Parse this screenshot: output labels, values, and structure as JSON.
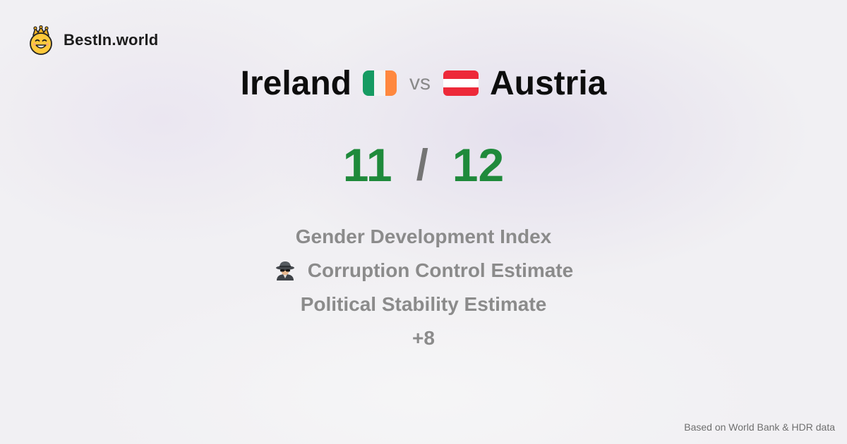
{
  "brand": {
    "name": "BestIn.world",
    "logo_icon": "crown-smiley-icon"
  },
  "comparison": {
    "left_country": "Ireland",
    "left_flag_icon": "ireland-flag-icon",
    "vs_label": "vs",
    "right_country": "Austria",
    "right_flag_icon": "austria-flag-icon"
  },
  "scores": {
    "left": "11",
    "separator": "/",
    "right": "12",
    "color": "#1f8a3b"
  },
  "metrics": [
    {
      "label": "Gender Development Index",
      "icon": ""
    },
    {
      "label": "Corruption Control Estimate",
      "icon": "detective-icon"
    },
    {
      "label": "Political Stability Estimate",
      "icon": ""
    },
    {
      "label": "+8",
      "icon": ""
    }
  ],
  "footer": {
    "source": "Based on World Bank & HDR data"
  }
}
